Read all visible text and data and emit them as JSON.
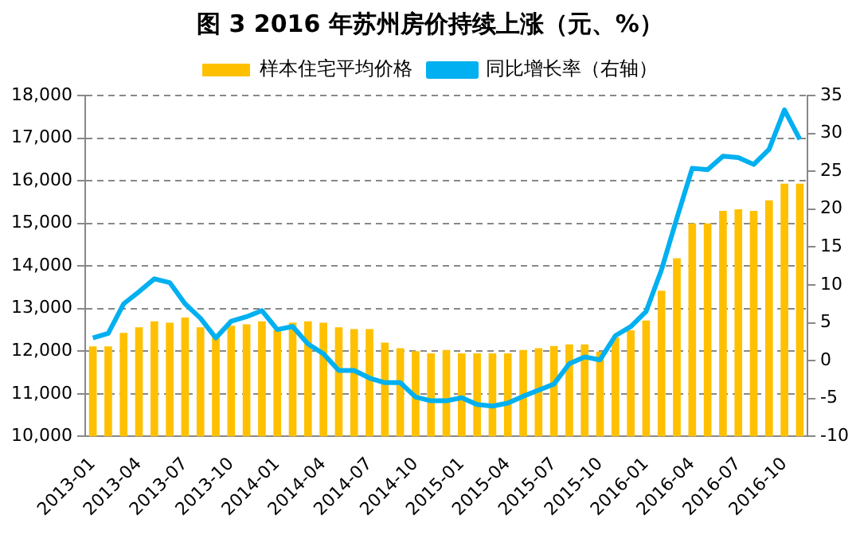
{
  "chart_data": {
    "type": "bar",
    "title": "图 3  2016 年苏州房价持续上涨（元、%）",
    "categories": [
      "2013-01",
      null,
      null,
      "2013-04",
      null,
      null,
      "2013-07",
      null,
      null,
      "2013-10",
      null,
      null,
      "2014-01",
      null,
      null,
      "2014-04",
      null,
      null,
      "2014-07",
      null,
      null,
      "2014-10",
      null,
      null,
      "2015-01",
      null,
      null,
      "2015-04",
      null,
      null,
      "2015-07",
      null,
      null,
      "2015-10",
      null,
      null,
      "2016-01",
      null,
      null,
      "2016-04",
      null,
      null,
      "2016-07",
      null,
      null,
      "2016-10",
      null
    ],
    "series": [
      {
        "name": "样本住宅平均价格",
        "color": "#ffc000",
        "values": [
          12110,
          12110,
          12430,
          12560,
          12700,
          12670,
          12790,
          12560,
          12360,
          12600,
          12630,
          12700,
          12500,
          12670,
          12700,
          12670,
          12560,
          12520,
          12520,
          12200,
          12070,
          12000,
          11950,
          12030,
          11950,
          11950,
          11950,
          11950,
          12030,
          12070,
          12120,
          12160,
          12160,
          11990,
          12320,
          12490,
          12720,
          13420,
          14180,
          15000,
          15000,
          15290,
          15330,
          15290,
          15540,
          15930,
          15930
        ]
      },
      {
        "name": "同比增长率（右轴）",
        "type": "line",
        "axis": "y2",
        "color": "#00b0f0",
        "values": [
          3.0,
          3.6,
          7.5,
          9.1,
          10.8,
          10.3,
          7.5,
          5.6,
          3.0,
          5.2,
          5.8,
          6.6,
          4.1,
          4.5,
          2.2,
          0.9,
          -1.3,
          -1.3,
          -2.3,
          -2.9,
          -2.9,
          -4.8,
          -5.3,
          -5.3,
          -4.9,
          -5.8,
          -6.0,
          -5.6,
          -4.7,
          -3.9,
          -3.1,
          -0.4,
          0.5,
          0.1,
          3.3,
          4.5,
          6.5,
          12.0,
          18.8,
          25.4,
          25.2,
          27.0,
          26.8,
          25.9,
          27.9,
          33.1,
          29.2
        ]
      }
    ],
    "ylim": [
      10000,
      18000
    ],
    "yticks": [
      {
        "value": 10000,
        "label": "10,000"
      },
      {
        "value": 11000,
        "label": "11,000"
      },
      {
        "value": 12000,
        "label": "12,000"
      },
      {
        "value": 13000,
        "label": "13,000"
      },
      {
        "value": 14000,
        "label": "14,000"
      },
      {
        "value": 15000,
        "label": "15,000"
      },
      {
        "value": 16000,
        "label": "16,000"
      },
      {
        "value": 17000,
        "label": "17,000"
      },
      {
        "value": 18000,
        "label": "18,000"
      }
    ],
    "y2lim": [
      -10,
      35
    ],
    "y2ticks": [
      -10,
      -5,
      0,
      5,
      10,
      15,
      20,
      25,
      30,
      35
    ],
    "grid": "y",
    "legend": "top",
    "marker": "none"
  }
}
